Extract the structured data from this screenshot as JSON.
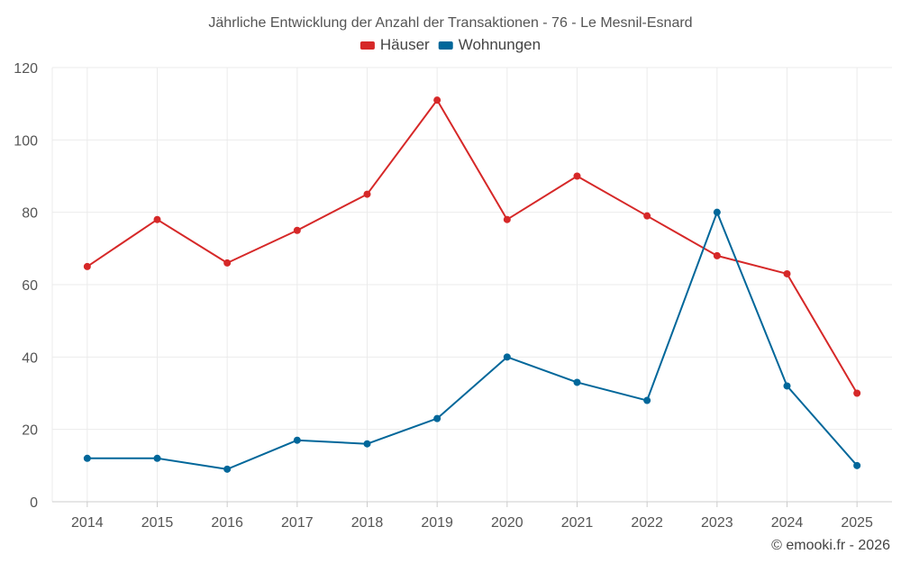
{
  "chart_data": {
    "type": "line",
    "title": "Jährliche Entwicklung der Anzahl der Transaktionen - 76 - Le Mesnil-Esnard",
    "categories": [
      "2014",
      "2015",
      "2016",
      "2017",
      "2018",
      "2019",
      "2020",
      "2021",
      "2022",
      "2023",
      "2024",
      "2025"
    ],
    "series": [
      {
        "name": "Häuser",
        "color": "#d62828",
        "values": [
          65,
          78,
          66,
          75,
          85,
          111,
          78,
          90,
          79,
          68,
          63,
          30
        ]
      },
      {
        "name": "Wohnungen",
        "color": "#00679a",
        "values": [
          12,
          12,
          9,
          17,
          16,
          23,
          40,
          33,
          28,
          80,
          32,
          10
        ]
      }
    ],
    "ylim": [
      0,
      120
    ],
    "yticks": [
      0,
      20,
      40,
      60,
      80,
      100,
      120
    ],
    "grid": true,
    "legend_position": "top-center",
    "xlabel": "",
    "ylabel": ""
  },
  "credit": "© emooki.fr - 2026"
}
